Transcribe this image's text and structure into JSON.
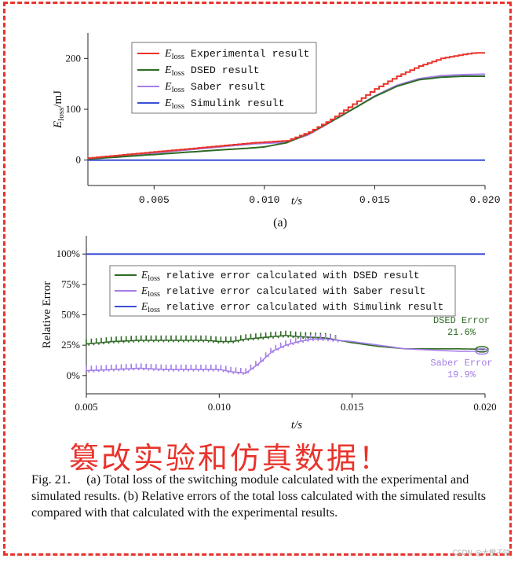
{
  "chart_data": [
    {
      "type": "line",
      "panel_label": "(a)",
      "xlabel": "t/s",
      "ylabel_main": "E",
      "ylabel_sub": "loss",
      "ylabel_unit": "/mJ",
      "xlim": [
        0.002,
        0.02
      ],
      "ylim": [
        -50,
        250
      ],
      "xticks": [
        0.005,
        0.01,
        0.015,
        0.02
      ],
      "xtick_labels": [
        "0.005",
        "0.010",
        "0.015",
        "0.020"
      ],
      "yticks": [
        0,
        100,
        200
      ],
      "ytick_labels": [
        "0",
        "100",
        "200"
      ],
      "legend_placement": "top-center",
      "grid": false,
      "series": [
        {
          "name_main": "E",
          "name_sub": "loss",
          "name_rest": " Experimental result",
          "color": "#e8342c",
          "step": true,
          "x": [
            0.002,
            0.004,
            0.006,
            0.008,
            0.0095,
            0.011,
            0.012,
            0.013,
            0.014,
            0.015,
            0.016,
            0.017,
            0.018,
            0.019,
            0.0195,
            0.02
          ],
          "y": [
            4,
            12,
            20,
            28,
            34,
            38,
            55,
            80,
            110,
            140,
            165,
            185,
            200,
            208,
            211,
            211
          ]
        },
        {
          "name_main": "E",
          "name_sub": "loss",
          "name_rest": " DSED result",
          "color": "#2e6b24",
          "step": false,
          "x": [
            0.002,
            0.004,
            0.006,
            0.008,
            0.0095,
            0.01,
            0.011,
            0.012,
            0.013,
            0.014,
            0.015,
            0.016,
            0.017,
            0.018,
            0.019,
            0.02
          ],
          "y": [
            2,
            8,
            14,
            20,
            24,
            26,
            34,
            52,
            75,
            100,
            125,
            145,
            158,
            163,
            165,
            165
          ]
        },
        {
          "name_main": "E",
          "name_sub": "loss",
          "name_rest": " Saber result",
          "color": "#a57ee8",
          "step": false,
          "x": [
            0.002,
            0.004,
            0.006,
            0.008,
            0.0095,
            0.011,
            0.012,
            0.013,
            0.014,
            0.015,
            0.016,
            0.017,
            0.018,
            0.019,
            0.02
          ],
          "y": [
            3,
            10,
            18,
            26,
            32,
            35,
            50,
            75,
            100,
            126,
            147,
            160,
            166,
            168,
            169
          ]
        },
        {
          "name_main": "E",
          "name_sub": "loss",
          "name_rest": " Simulink result",
          "color": "#3b4fd6",
          "step": false,
          "x": [
            0.002,
            0.02
          ],
          "y": [
            0,
            0
          ]
        }
      ]
    },
    {
      "type": "line",
      "panel_label": "(b)",
      "xlabel": "t/s",
      "ylabel": "Relative Error",
      "xlim": [
        0.005,
        0.02
      ],
      "ylim": [
        -15,
        115
      ],
      "xticks": [
        0.005,
        0.01,
        0.015,
        0.02
      ],
      "xtick_labels": [
        "0.005",
        "0.010",
        "0.015",
        "0.020"
      ],
      "yticks": [
        0,
        25,
        50,
        75,
        100
      ],
      "ytick_labels": [
        "0%",
        "25%",
        "50%",
        "75%",
        "100%"
      ],
      "legend_placement": "top-center",
      "grid": false,
      "series": [
        {
          "name_main": "E",
          "name_sub": "loss",
          "name_rest": " relative error calculated with DSED result",
          "color": "#2e6b24",
          "x": [
            0.005,
            0.006,
            0.007,
            0.008,
            0.009,
            0.0095,
            0.01,
            0.0105,
            0.011,
            0.0115,
            0.012,
            0.0125,
            0.013,
            0.014,
            0.015,
            0.016,
            0.017,
            0.018,
            0.019,
            0.02
          ],
          "y": [
            26,
            28,
            29,
            29,
            29,
            29,
            28,
            28,
            30,
            31,
            32,
            33,
            32,
            31,
            27,
            24,
            22,
            22,
            22,
            21.6
          ],
          "jitter": 4
        },
        {
          "name_main": "E",
          "name_sub": "loss",
          "name_rest": " relative error calculated with Saber result",
          "color": "#a57ee8",
          "x": [
            0.005,
            0.006,
            0.007,
            0.008,
            0.009,
            0.01,
            0.0105,
            0.011,
            0.0115,
            0.012,
            0.0125,
            0.013,
            0.0135,
            0.014,
            0.015,
            0.016,
            0.017,
            0.018,
            0.019,
            0.02
          ],
          "y": [
            4,
            5,
            6,
            5,
            5,
            5,
            3,
            2,
            10,
            20,
            25,
            28,
            30,
            30,
            28,
            25,
            22,
            21,
            20,
            19.9
          ],
          "jitter": 4
        },
        {
          "name_main": "E",
          "name_sub": "loss",
          "name_rest": " relative error calculated with Simulink result",
          "color": "#3b4fd6",
          "x": [
            0.005,
            0.02
          ],
          "y": [
            100,
            100
          ],
          "jitter": 0
        }
      ],
      "annotations": [
        {
          "title": "DSED Error",
          "value": "21.6%",
          "color": "#2e6b24",
          "x": 0.02,
          "y": 21.6,
          "anchor_y": 42
        },
        {
          "title": "Saber Error",
          "value": "19.9%",
          "color": "#a57ee8",
          "x": 0.02,
          "y": 19.9,
          "anchor_y": 7
        }
      ]
    }
  ],
  "overlay_text": "篡改实验和仿真数据！",
  "caption": {
    "prefix": "Fig. 21.",
    "text": "(a) Total loss of the switching module calculated with the experimental and simulated results. (b) Relative errors of the total loss calculated with the simulated results compared with that calculated with the experimental results."
  },
  "watermark": "CSDN @大橙子咕"
}
